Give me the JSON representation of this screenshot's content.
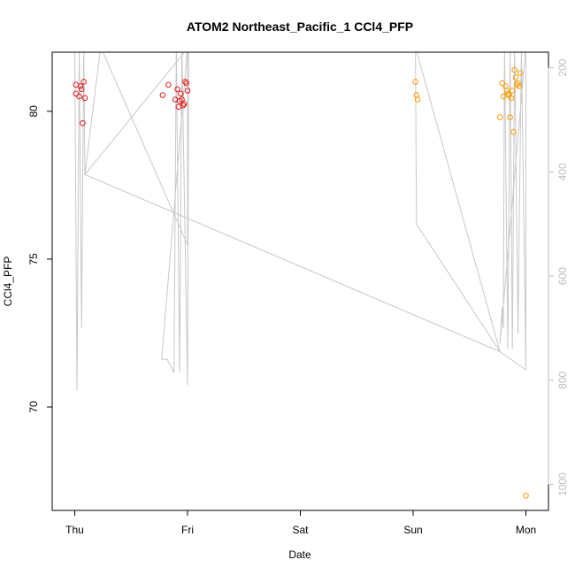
{
  "chart_data": {
    "type": "scatter",
    "title": "ATOM2 Northeast_Pacific_1 CCl4_PFP",
    "xlabel": "Date",
    "ylabel": "CCl4_PFP",
    "x_ticks": [
      "Thu",
      "Fri",
      "Sat",
      "Sun",
      "Mon"
    ],
    "x_range_days": [
      -0.2,
      4.2
    ],
    "ylim": [
      66.5,
      82
    ],
    "y_ticks": [
      70,
      75,
      80
    ],
    "y2_ticks": [
      200,
      400,
      600,
      800,
      1000
    ],
    "y2lim": [
      1050,
      170
    ],
    "colors": {
      "series_a": "#e41a1c",
      "series_b": "#ff9900",
      "altitude_line": "#c8c8c8",
      "right_axis": "#bdbdbd",
      "frame": "#000000"
    },
    "series": [
      {
        "color_key": "series_a",
        "points": [
          [
            0.01,
            80.9
          ],
          [
            0.01,
            80.6
          ],
          [
            0.04,
            80.5
          ],
          [
            0.05,
            80.85
          ],
          [
            0.06,
            80.75
          ],
          [
            0.07,
            79.6
          ],
          [
            0.08,
            81.0
          ],
          [
            0.09,
            80.45
          ],
          [
            0.78,
            80.55
          ],
          [
            0.83,
            80.9
          ],
          [
            0.89,
            80.4
          ],
          [
            0.91,
            80.75
          ],
          [
            0.92,
            80.15
          ],
          [
            0.93,
            80.35
          ],
          [
            0.94,
            80.6
          ],
          [
            0.95,
            80.4
          ],
          [
            0.96,
            80.2
          ],
          [
            0.97,
            80.25
          ],
          [
            0.98,
            81.0
          ],
          [
            0.99,
            80.95
          ],
          [
            1.0,
            80.7
          ]
        ]
      },
      {
        "color_key": "series_b",
        "points": [
          [
            3.02,
            81.0
          ],
          [
            3.03,
            80.55
          ],
          [
            3.04,
            80.4
          ],
          [
            3.77,
            79.8
          ],
          [
            3.79,
            80.95
          ],
          [
            3.8,
            80.5
          ],
          [
            3.82,
            80.85
          ],
          [
            3.83,
            80.7
          ],
          [
            3.84,
            80.6
          ],
          [
            3.85,
            80.55
          ],
          [
            3.86,
            79.8
          ],
          [
            3.87,
            80.45
          ],
          [
            3.88,
            80.7
          ],
          [
            3.89,
            79.3
          ],
          [
            3.9,
            81.4
          ],
          [
            3.91,
            81.15
          ],
          [
            3.92,
            80.9
          ],
          [
            3.93,
            80.95
          ],
          [
            3.94,
            80.85
          ],
          [
            3.95,
            81.3
          ],
          [
            4.0,
            67.0
          ]
        ]
      }
    ],
    "altitude_trace": [
      [
        0.0,
        160
      ],
      [
        0.02,
        820
      ],
      [
        0.04,
        160
      ],
      [
        0.06,
        700
      ],
      [
        0.08,
        160
      ],
      [
        0.09,
        405
      ],
      [
        0.23,
        160
      ],
      [
        1.0,
        540
      ],
      [
        1.0,
        160
      ],
      [
        0.77,
        760
      ],
      [
        0.82,
        760
      ],
      [
        0.88,
        785
      ],
      [
        0.9,
        160
      ],
      [
        0.93,
        785
      ],
      [
        0.95,
        160
      ],
      [
        1.0,
        810
      ],
      [
        1.01,
        160
      ],
      [
        0.09,
        405
      ],
      [
        3.77,
        745
      ],
      [
        3.02,
        160
      ],
      [
        3.03,
        500
      ],
      [
        3.77,
        745
      ],
      [
        4.0,
        780
      ],
      [
        4.0,
        160
      ],
      [
        3.77,
        730
      ],
      [
        3.79,
        660
      ],
      [
        3.8,
        700
      ],
      [
        3.81,
        160
      ],
      [
        3.84,
        740
      ],
      [
        3.86,
        160
      ],
      [
        3.88,
        740
      ],
      [
        3.9,
        160
      ],
      [
        3.93,
        710
      ],
      [
        3.96,
        160
      ],
      [
        4.0,
        780
      ]
    ]
  }
}
